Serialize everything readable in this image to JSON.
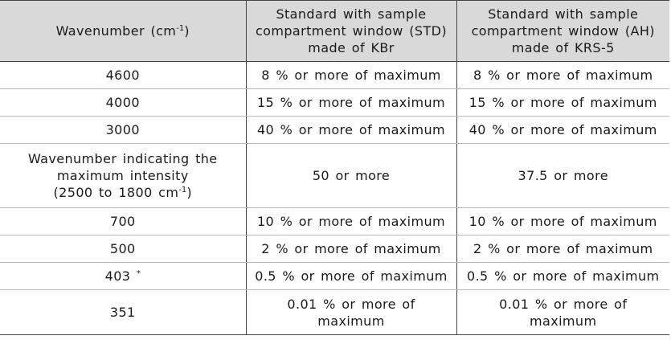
{
  "header": {
    "col0_text": "Wavenumber (cm",
    "col0_sup": "-1",
    "col0_tail": ")",
    "col1_line1": "Standard with sample",
    "col1_line2": "compartment window (STD)",
    "col1_line3": "made of KBr",
    "col2_line1": "Standard with sample",
    "col2_line2": "compartment window (AH)",
    "col2_line3": "made of KRS-5"
  },
  "rows": [
    {
      "wavenumber": "4600",
      "std": "8 % or more of maximum",
      "ah": "8 % or more of maximum"
    },
    {
      "wavenumber": "4000",
      "std": "15 % or more of maximum",
      "ah": "15 % or more of maximum"
    },
    {
      "wavenumber": "3000",
      "std": "40 % or more of maximum",
      "ah": "40 % or more of maximum"
    },
    {
      "wavenumber_line1": "Wavenumber indicating the",
      "wavenumber_line2": "maximum intensity",
      "wavenumber_line3": "(2500 to 1800 cm",
      "wavenumber_line3_sup": "-1",
      "wavenumber_line3_tail": ")",
      "std": "50 or more",
      "ah": "37.5 or more"
    },
    {
      "wavenumber": "700",
      "std": "10 % or more of maximum",
      "ah": "10 % or more of maximum"
    },
    {
      "wavenumber": "500",
      "std": "2 % or more of maximum",
      "ah": "2 % or more of maximum"
    },
    {
      "wavenumber": "403",
      "wavenumber_sup": "*",
      "std": "0.5 % or more of maximum",
      "ah": "0.5 % or more of maximum"
    },
    {
      "wavenumber": "351",
      "std_line1": "0.01 % or more of",
      "std_line2": "maximum",
      "ah_line1": "0.01 % or more of",
      "ah_line2": "maximum"
    }
  ]
}
